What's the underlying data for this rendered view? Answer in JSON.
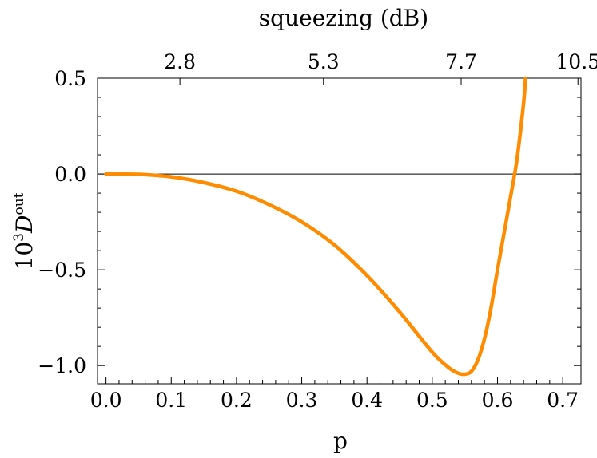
{
  "chart_data": {
    "type": "line",
    "title": "",
    "xlabel": "p",
    "ylabel": {
      "base": "10",
      "exponent": "3",
      "symbol": "D",
      "superscript": "out"
    },
    "top_axis_label": "squeezing (dB)",
    "xlim": [
      -0.013,
      0.728
    ],
    "ylim": [
      -1.095,
      0.5
    ],
    "x_ticks": [
      0.0,
      0.1,
      0.2,
      0.3,
      0.4,
      0.5,
      0.6,
      0.7
    ],
    "x_tick_labels": [
      "0.0",
      "0.1",
      "0.2",
      "0.3",
      "0.4",
      "0.5",
      "0.6",
      "0.7"
    ],
    "y_ticks": [
      -1.0,
      -0.5,
      0.0,
      0.5
    ],
    "y_tick_labels": [
      "−1.0",
      "−0.5",
      "0.0",
      "0.5"
    ],
    "top_ticks": [
      {
        "p": 0.1133,
        "label": "2.8"
      },
      {
        "p": 0.3333,
        "label": "5.3"
      },
      {
        "p": 0.5443,
        "label": "7.7"
      },
      {
        "p": 0.7234,
        "label": "10.5"
      }
    ],
    "zero_line": true,
    "series": [
      {
        "name": "D_out",
        "color": "#ff8c00",
        "x": [
          0.0,
          0.05,
          0.1,
          0.15,
          0.2,
          0.25,
          0.3,
          0.35,
          0.4,
          0.45,
          0.5,
          0.525,
          0.54,
          0.55,
          0.56,
          0.57,
          0.58,
          0.59,
          0.6,
          0.61,
          0.62,
          0.63,
          0.64,
          0.643
        ],
        "y": [
          0.0,
          -0.002,
          -0.015,
          -0.045,
          -0.09,
          -0.16,
          -0.25,
          -0.37,
          -0.53,
          -0.72,
          -0.93,
          -1.01,
          -1.04,
          -1.045,
          -1.03,
          -0.97,
          -0.86,
          -0.7,
          -0.5,
          -0.31,
          -0.12,
          0.08,
          0.37,
          0.5
        ]
      }
    ]
  }
}
